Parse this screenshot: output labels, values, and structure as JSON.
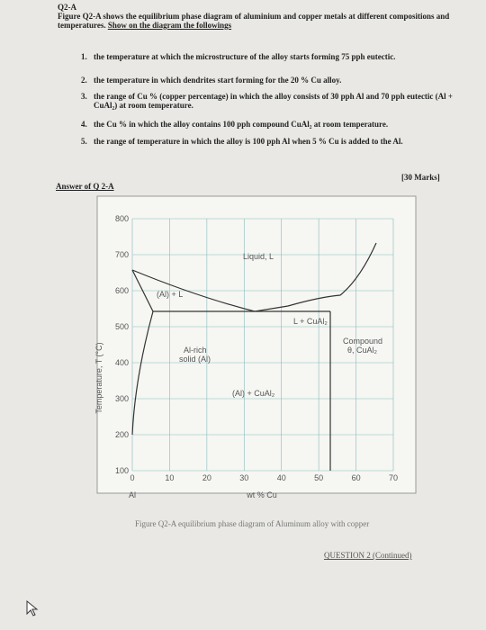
{
  "header": {
    "title": "Q2-A",
    "intro": "Figure Q2-A shows the equilibrium phase diagram of aluminium and copper metals at different compositions and temperatures.",
    "instruction": "Show on the diagram the followings"
  },
  "questions": [
    {
      "number": "1.",
      "text": "the temperature at which the microstructure of the alloy starts forming 75 pph eutectic."
    },
    {
      "number": "2.",
      "text": "the temperature in which dendrites start forming for the 20 % Cu alloy."
    },
    {
      "number": "3.",
      "text": "the range of Cu % (copper percentage) in which the alloy consists of 30 pph Al and 70 pph eutectic (Al + CuAl₂) at room temperature."
    },
    {
      "number": "4.",
      "text": "the Cu % in which the alloy contains 100 pph compound CuAl₂ at room temperature."
    },
    {
      "number": "5.",
      "text": "the range of temperature in which the alloy is 100 pph Al when 5 % Cu is added to the Al."
    }
  ],
  "marks": "[30 Marks]",
  "answer_heading": "Answer of Q 2-A",
  "figure": {
    "ylabel": "Temperature, T (°C)",
    "yticks": [
      100,
      200,
      300,
      400,
      500,
      600,
      700,
      800
    ],
    "xticks": [
      0,
      10,
      20,
      30,
      40,
      50,
      60,
      70
    ],
    "x_origin_label": "Al",
    "xlabel": "wt % Cu",
    "regions": {
      "liquid": "Liquid, L",
      "al_l": "(Al) + L",
      "l_cual2": "L + CuAl₂",
      "al_rich_1": "Al-rich",
      "al_rich_2": "solid (Al)",
      "al_cual2": "(Al) + CuAl₂",
      "compound_1": "Compound",
      "compound_2": "θ, CuAl₂"
    },
    "caption": "Figure Q2-A equilibrium phase diagram of Aluminum alloy with copper"
  },
  "footer": "QUESTION 2 (Continued)"
}
